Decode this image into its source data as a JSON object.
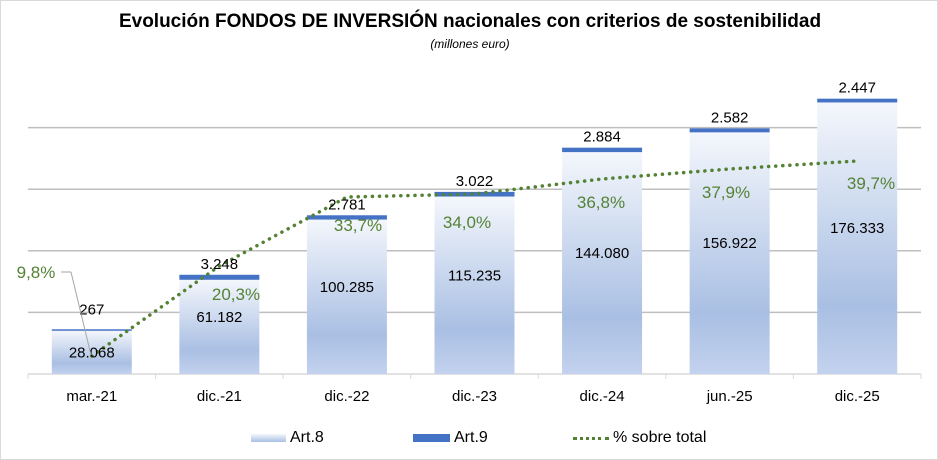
{
  "chart_data": {
    "type": "bar",
    "stacked": true,
    "title": "Evolución FONDOS DE INVERSIÓN nacionales con criterios de sostenibilidad",
    "subtitle": "(millones euro)",
    "xlabel": "",
    "ylabel": "",
    "categories": [
      "mar.-21",
      "dic.-21",
      "dic.-22",
      "dic.-23",
      "dic.-24",
      "jun.-25",
      "dic.-25"
    ],
    "ylim": [
      0,
      200000
    ],
    "gridlines": [
      40000,
      80000,
      120000,
      160000
    ],
    "grid": true,
    "legend_position": "bottom",
    "series": [
      {
        "name": "Art.8",
        "type": "bar",
        "color": "#a9bfe3",
        "values": [
          28068,
          61182,
          100285,
          115235,
          144080,
          156922,
          176333
        ],
        "labels": [
          "28.068",
          "61.182",
          "100.285",
          "115.235",
          "144.080",
          "156.922",
          "176.333"
        ]
      },
      {
        "name": "Art.9",
        "type": "bar",
        "color": "#4472c4",
        "values": [
          267,
          3248,
          2781,
          3022,
          2884,
          2582,
          2447
        ],
        "labels": [
          "267",
          "3.248",
          "2.781",
          "3.022",
          "2.884",
          "2.582",
          "2.447"
        ]
      },
      {
        "name": "% sobre total",
        "type": "line",
        "style": "dotted",
        "color": "#548235",
        "values": [
          9.8,
          20.3,
          33.7,
          34.0,
          36.8,
          37.9,
          39.7
        ],
        "labels": [
          "9,8%",
          "20,3%",
          "33,7%",
          "34,0%",
          "36,8%",
          "37,9%",
          "39,7%"
        ]
      }
    ]
  }
}
